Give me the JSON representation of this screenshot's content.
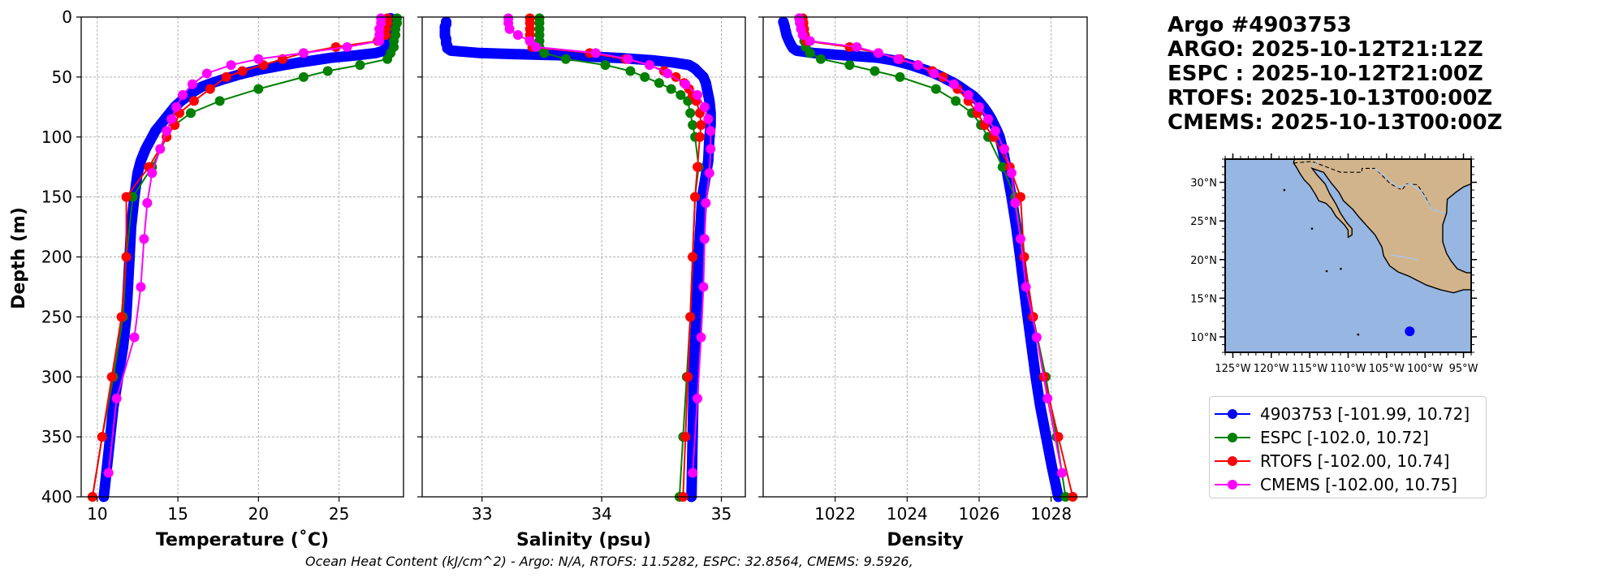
{
  "header": {
    "lines": [
      "Argo #4903753",
      "ARGO: 2025-10-12T21:12Z",
      "ESPC : 2025-10-12T21:00Z",
      "RTOFS: 2025-10-13T00:00Z",
      "CMEMS: 2025-10-13T00:00Z"
    ]
  },
  "footnote": "Ocean Heat Content (kJ/cm^2) - Argo: N/A,  RTOFS: 11.5282,  ESPC: 32.8564,  CMEMS: 9.5926,",
  "legend": {
    "items": [
      {
        "label": "4903753 [-101.99, 10.72]",
        "color": "#0000ff"
      },
      {
        "label": "ESPC [-102.0, 10.72]",
        "color": "#008000"
      },
      {
        "label": "RTOFS [-102.00, 10.74]",
        "color": "#ff0000"
      },
      {
        "label": "CMEMS [-102.00, 10.75]",
        "color": "#ff00ff"
      }
    ]
  },
  "map": {
    "lat_labels": [
      "30°N",
      "25°N",
      "20°N",
      "15°N",
      "10°N"
    ],
    "lat_values": [
      30,
      25,
      20,
      15,
      10
    ],
    "lon_labels": [
      "125°W",
      "120°W",
      "115°W",
      "110°W",
      "105°W",
      "100°W",
      "95°W"
    ],
    "lon_values": [
      -125,
      -120,
      -115,
      -110,
      -105,
      -100,
      -95
    ],
    "lon_range": [
      -126,
      -94
    ],
    "lat_range": [
      8,
      33
    ],
    "float_position": {
      "lon": -101.99,
      "lat": 10.72
    },
    "ocean_color": "#97b6e1",
    "land_color": "#d2b48c",
    "marker_color": "#0000ff"
  },
  "chart_data": [
    {
      "type": "line",
      "xlabel": "Temperature (˚C)",
      "ylabel": "Depth (m)",
      "xlim": [
        9,
        29
      ],
      "ylim": [
        400,
        0
      ],
      "xticks": [
        10,
        15,
        20,
        25
      ],
      "yticks": [
        0,
        50,
        100,
        150,
        200,
        250,
        300,
        350,
        400
      ],
      "grid": true,
      "series": [
        {
          "name": "4903753",
          "color": "#0000ff",
          "marker": "dense",
          "y": [
            1,
            5,
            10,
            15,
            20,
            25,
            28,
            30,
            32,
            34,
            36,
            38,
            40,
            42,
            44,
            46,
            48,
            50,
            52,
            55,
            58,
            62,
            66,
            70,
            75,
            80,
            85,
            90,
            95,
            100,
            110,
            120,
            130,
            140,
            150,
            175,
            200,
            225,
            250,
            275,
            300,
            325,
            350,
            375,
            400
          ],
          "x": [
            28.2,
            28.1,
            28.1,
            28.0,
            28.0,
            27.9,
            27.8,
            27.3,
            26.0,
            24.5,
            23.5,
            22.5,
            21.6,
            20.8,
            20.0,
            19.4,
            18.8,
            18.3,
            17.8,
            17.1,
            16.5,
            16.0,
            15.6,
            15.2,
            14.8,
            14.5,
            14.2,
            13.9,
            13.6,
            13.4,
            13.0,
            12.7,
            12.5,
            12.4,
            12.3,
            12.1,
            12.0,
            11.9,
            11.8,
            11.6,
            11.3,
            11.0,
            10.8,
            10.6,
            10.4
          ]
        },
        {
          "name": "ESPC",
          "color": "#008000",
          "marker": "o",
          "y": [
            1,
            5,
            10,
            15,
            20,
            25,
            30,
            35,
            40,
            45,
            50,
            60,
            70,
            80,
            90,
            100,
            125,
            150,
            200,
            250,
            300,
            350,
            400
          ],
          "x": [
            28.6,
            28.6,
            28.5,
            28.5,
            28.4,
            28.4,
            28.2,
            28.0,
            26.3,
            24.3,
            22.8,
            20.0,
            17.6,
            15.8,
            14.8,
            14.3,
            13.4,
            12.2,
            11.8,
            11.6,
            11.0,
            10.3,
            9.7
          ]
        },
        {
          "name": "RTOFS",
          "color": "#ff0000",
          "marker": "o",
          "y": [
            1,
            5,
            10,
            15,
            20,
            25,
            30,
            35,
            40,
            45,
            50,
            60,
            70,
            80,
            90,
            100,
            125,
            150,
            200,
            250,
            300,
            350,
            400
          ],
          "x": [
            28.0,
            28.0,
            27.9,
            27.9,
            27.4,
            24.8,
            22.8,
            21.5,
            20.3,
            19.0,
            18.0,
            17.0,
            16.0,
            15.1,
            14.8,
            14.3,
            13.2,
            11.8,
            11.8,
            11.5,
            10.9,
            10.3,
            9.7
          ]
        },
        {
          "name": "CMEMS",
          "color": "#ff00ff",
          "marker": "o",
          "y": [
            1,
            5,
            10,
            15,
            20,
            25,
            30,
            35,
            40,
            47,
            56,
            65,
            75,
            85,
            95,
            110,
            130,
            155,
            185,
            225,
            267,
            318,
            380
          ],
          "x": [
            27.6,
            27.6,
            27.5,
            27.5,
            27.5,
            25.5,
            22.8,
            20.0,
            18.3,
            16.8,
            15.9,
            15.3,
            14.9,
            14.6,
            14.3,
            13.9,
            13.4,
            13.1,
            12.9,
            12.7,
            12.3,
            11.2,
            10.7
          ]
        }
      ]
    },
    {
      "type": "line",
      "xlabel": "Salinity (psu)",
      "ylabel": "",
      "xlim": [
        32.5,
        35.2
      ],
      "ylim": [
        400,
        0
      ],
      "xticks": [
        33,
        34,
        35
      ],
      "yticks": [
        0,
        50,
        100,
        150,
        200,
        250,
        300,
        350,
        400
      ],
      "grid": true,
      "series": [
        {
          "name": "4903753",
          "color": "#0000ff",
          "marker": "dense",
          "y": [
            4,
            6,
            8,
            10,
            12,
            14,
            16,
            18,
            20,
            22,
            24,
            26,
            28,
            30,
            31,
            32,
            34,
            36,
            38,
            40,
            43,
            46,
            50,
            55,
            60,
            65,
            70,
            80,
            90,
            100,
            120,
            150,
            200,
            250,
            300,
            350,
            400
          ],
          "x": [
            32.7,
            32.7,
            32.69,
            32.69,
            32.69,
            32.69,
            32.69,
            32.7,
            32.7,
            32.7,
            32.71,
            32.71,
            32.74,
            32.98,
            33.3,
            33.7,
            34.12,
            34.42,
            34.6,
            34.73,
            34.78,
            34.81,
            34.85,
            34.87,
            34.88,
            34.89,
            34.9,
            34.91,
            34.91,
            34.9,
            34.89,
            34.84,
            34.81,
            34.79,
            34.77,
            34.76,
            34.75
          ]
        },
        {
          "name": "ESPC",
          "color": "#008000",
          "marker": "o",
          "y": [
            1,
            5,
            10,
            15,
            20,
            25,
            30,
            35,
            40,
            45,
            50,
            55,
            60,
            65,
            70,
            80,
            90,
            100,
            125,
            150,
            200,
            250,
            300,
            350,
            400
          ],
          "x": [
            33.48,
            33.48,
            33.48,
            33.48,
            33.48,
            33.48,
            33.52,
            33.7,
            34.03,
            34.24,
            34.36,
            34.48,
            34.58,
            34.66,
            34.72,
            34.74,
            34.76,
            34.78,
            34.81,
            34.78,
            34.76,
            34.74,
            34.71,
            34.68,
            34.65
          ]
        },
        {
          "name": "RTOFS",
          "color": "#ff0000",
          "marker": "o",
          "y": [
            1,
            5,
            10,
            15,
            20,
            25,
            30,
            35,
            40,
            45,
            50,
            55,
            60,
            65,
            70,
            80,
            90,
            100,
            125,
            150,
            200,
            250,
            300,
            350,
            400
          ],
          "x": [
            33.4,
            33.4,
            33.4,
            33.4,
            33.4,
            33.42,
            33.9,
            34.2,
            34.4,
            34.52,
            34.62,
            34.69,
            34.73,
            34.76,
            34.79,
            34.82,
            34.83,
            34.82,
            34.8,
            34.78,
            34.76,
            34.74,
            34.72,
            34.7,
            34.68
          ]
        },
        {
          "name": "CMEMS",
          "color": "#ff00ff",
          "marker": "o",
          "y": [
            1,
            5,
            10,
            15,
            20,
            25,
            30,
            35,
            40,
            47,
            56,
            65,
            75,
            85,
            95,
            110,
            130,
            155,
            185,
            225,
            267,
            318,
            380
          ],
          "x": [
            33.22,
            33.22,
            33.23,
            33.3,
            33.4,
            33.45,
            33.95,
            34.22,
            34.4,
            34.55,
            34.7,
            34.8,
            34.86,
            34.89,
            34.91,
            34.91,
            34.9,
            34.87,
            34.86,
            34.85,
            34.83,
            34.8,
            34.76
          ]
        }
      ]
    },
    {
      "type": "line",
      "xlabel": "Density",
      "ylabel": "",
      "xlim": [
        1020.0,
        1029.0
      ],
      "ylim": [
        400,
        0
      ],
      "xticks": [
        1022,
        1024,
        1026,
        1028
      ],
      "yticks": [
        0,
        50,
        100,
        150,
        200,
        250,
        300,
        350,
        400
      ],
      "grid": true,
      "series": [
        {
          "name": "4903753",
          "color": "#0000ff",
          "marker": "dense",
          "y": [
            4,
            6,
            8,
            10,
            12,
            14,
            16,
            18,
            20,
            22,
            24,
            26,
            28,
            30,
            32,
            34,
            36,
            38,
            40,
            42,
            44,
            46,
            48,
            50,
            52,
            55,
            58,
            62,
            66,
            70,
            75,
            80,
            85,
            90,
            95,
            100,
            110,
            120,
            130,
            140,
            150,
            175,
            200,
            225,
            250,
            275,
            300,
            325,
            350,
            375,
            400
          ],
          "x": [
            1020.56,
            1020.58,
            1020.6,
            1020.61,
            1020.63,
            1020.64,
            1020.66,
            1020.69,
            1020.72,
            1020.75,
            1020.79,
            1020.83,
            1020.93,
            1021.4,
            1022.3,
            1023.2,
            1023.6,
            1023.85,
            1024.1,
            1024.3,
            1024.5,
            1024.68,
            1024.83,
            1024.98,
            1025.1,
            1025.3,
            1025.46,
            1025.65,
            1025.85,
            1025.98,
            1026.12,
            1026.24,
            1026.34,
            1026.42,
            1026.5,
            1026.57,
            1026.65,
            1026.72,
            1026.78,
            1026.84,
            1026.9,
            1027.03,
            1027.14,
            1027.24,
            1027.35,
            1027.46,
            1027.57,
            1027.7,
            1027.86,
            1028.02,
            1028.2
          ]
        },
        {
          "name": "ESPC",
          "color": "#008000",
          "marker": "o",
          "y": [
            1,
            5,
            10,
            15,
            20,
            25,
            30,
            35,
            40,
            45,
            50,
            60,
            70,
            80,
            90,
            100,
            125,
            150,
            200,
            250,
            300,
            350,
            400
          ],
          "x": [
            1021.0,
            1021.02,
            1021.05,
            1021.1,
            1021.14,
            1021.18,
            1021.3,
            1021.6,
            1022.4,
            1023.1,
            1023.8,
            1024.8,
            1025.35,
            1025.8,
            1026.05,
            1026.25,
            1026.65,
            1027.0,
            1027.25,
            1027.5,
            1027.85,
            1028.15,
            1028.4
          ]
        },
        {
          "name": "RTOFS",
          "color": "#ff0000",
          "marker": "o",
          "y": [
            1,
            5,
            10,
            15,
            20,
            25,
            30,
            35,
            40,
            45,
            50,
            60,
            70,
            80,
            90,
            100,
            125,
            150,
            200,
            250,
            300,
            350,
            400
          ],
          "x": [
            1021.1,
            1021.12,
            1021.14,
            1021.16,
            1021.2,
            1022.4,
            1023.2,
            1023.8,
            1024.3,
            1024.7,
            1025.0,
            1025.4,
            1025.7,
            1025.95,
            1026.15,
            1026.4,
            1026.85,
            1027.15,
            1027.25,
            1027.5,
            1027.8,
            1028.2,
            1028.6
          ]
        },
        {
          "name": "CMEMS",
          "color": "#ff00ff",
          "marker": "o",
          "y": [
            1,
            5,
            10,
            15,
            20,
            25,
            30,
            35,
            40,
            47,
            56,
            65,
            75,
            85,
            95,
            110,
            130,
            155,
            185,
            225,
            267,
            318,
            380
          ],
          "x": [
            1021.0,
            1021.02,
            1021.05,
            1021.1,
            1021.3,
            1022.6,
            1023.2,
            1023.75,
            1024.3,
            1024.75,
            1025.3,
            1025.7,
            1026.0,
            1026.25,
            1026.45,
            1026.7,
            1026.9,
            1027.0,
            1027.15,
            1027.3,
            1027.6,
            1027.9,
            1028.3
          ]
        }
      ]
    }
  ]
}
